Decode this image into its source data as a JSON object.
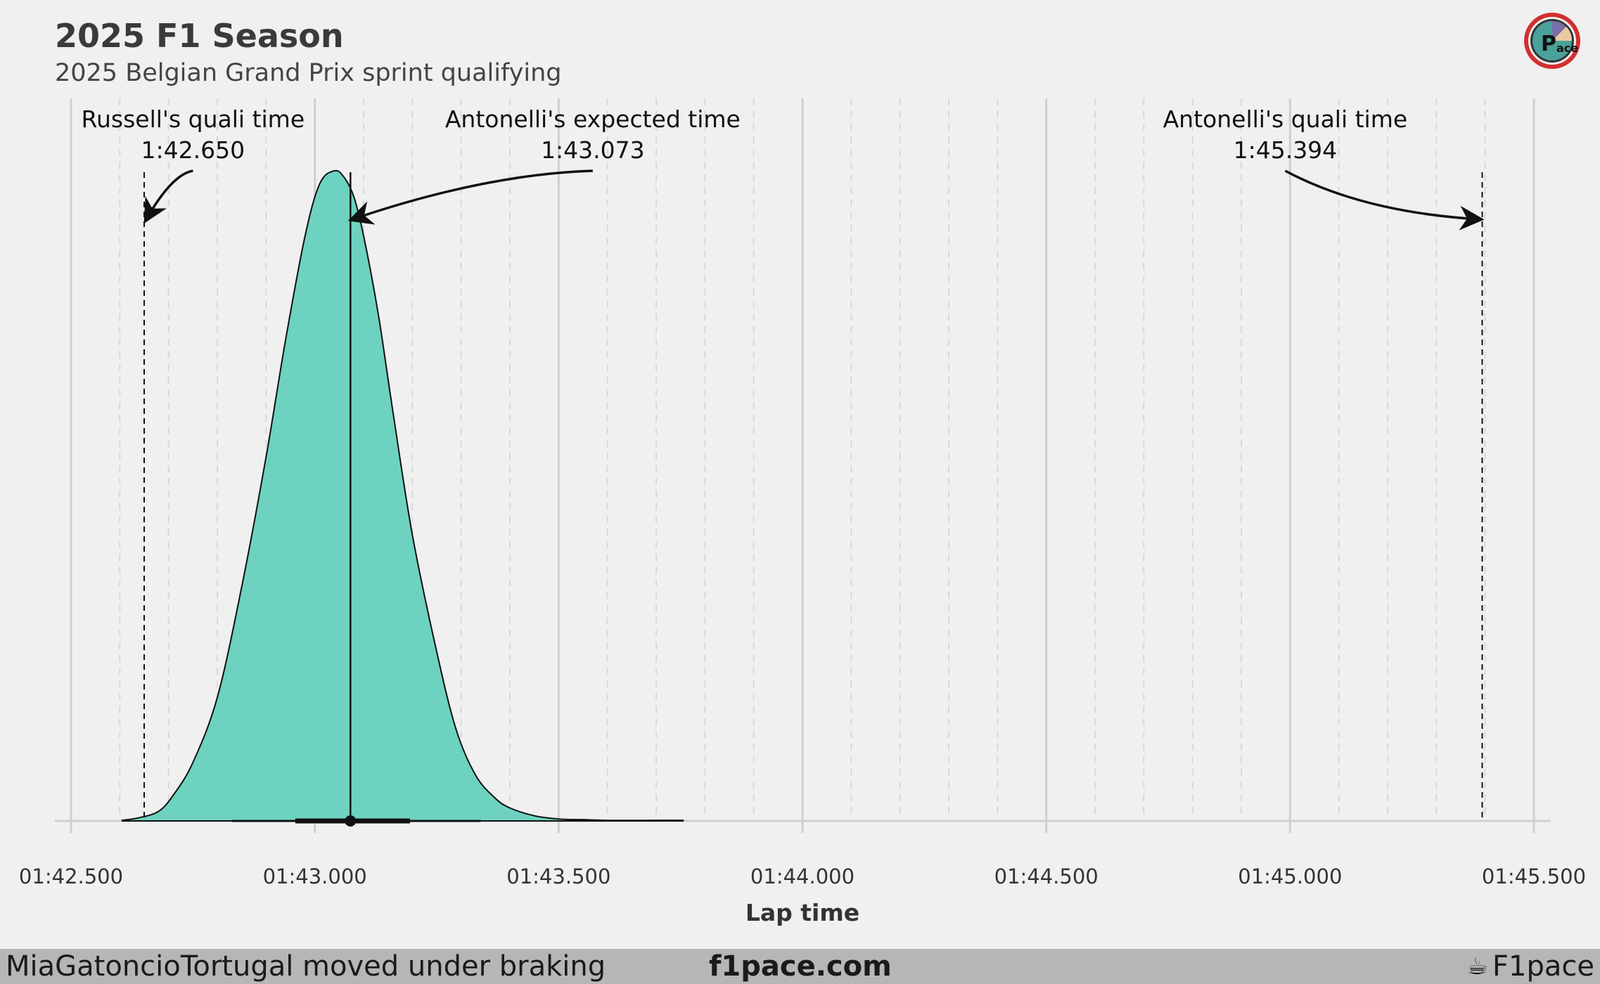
{
  "header": {
    "title": "2025 F1 Season",
    "subtitle": "2025 Belgian Grand Prix sprint qualifying"
  },
  "logo": {
    "icon": "f1pace-logo-icon",
    "ring_color": "#d32f2f",
    "inner_color": "#4aa29a",
    "text": "ace"
  },
  "chart_data": {
    "type": "area",
    "subtype": "density",
    "xlabel": "Lap time",
    "ylabel": "",
    "xlim": [
      102.45,
      105.53
    ],
    "ticks": [
      {
        "value": 102.5,
        "label": "01:42.500"
      },
      {
        "value": 103.0,
        "label": "01:43.000"
      },
      {
        "value": 103.5,
        "label": "01:43.500"
      },
      {
        "value": 104.0,
        "label": "01:44.000"
      },
      {
        "value": 104.5,
        "label": "01:44.500"
      },
      {
        "value": 105.0,
        "label": "01:45.000"
      },
      {
        "value": 105.5,
        "label": "01:45.500"
      }
    ],
    "minor_tick_step": 0.1,
    "grid": true,
    "fill_color": "#6dd3c0",
    "series": [
      {
        "x": [
          102.605,
          102.64,
          102.68,
          102.71,
          102.75,
          102.8,
          102.85,
          102.9,
          102.94,
          102.98,
          103.01,
          103.04,
          103.06,
          103.08,
          103.1,
          103.13,
          103.16,
          103.2,
          103.25,
          103.29,
          103.33,
          103.37,
          103.4,
          103.45,
          103.5,
          103.55,
          103.6,
          103.65,
          103.7,
          103.755
        ],
        "y": [
          0.001,
          0.005,
          0.015,
          0.04,
          0.09,
          0.19,
          0.36,
          0.56,
          0.74,
          0.9,
          0.98,
          1.0,
          0.99,
          0.96,
          0.9,
          0.78,
          0.63,
          0.44,
          0.26,
          0.14,
          0.07,
          0.035,
          0.02,
          0.008,
          0.003,
          0.002,
          0.001,
          0.0008,
          0.001,
          0.001
        ]
      }
    ],
    "boxplot": {
      "whisker_low": 102.83,
      "q1": 102.96,
      "median": 103.073,
      "q3": 103.195,
      "whisker_high": 103.34
    },
    "markers": [
      {
        "value": 102.65,
        "style": "dashed",
        "label_line1": "Russell's quali time",
        "label_line2": "1:42.650",
        "label_x": 102.75
      },
      {
        "value": 103.073,
        "style": "solid",
        "label_line1": "Antonelli's expected time",
        "label_line2": "1:43.073",
        "label_x": 103.57
      },
      {
        "value": 105.394,
        "style": "dashed",
        "label_line1": "Antonelli's quali time",
        "label_line2": "1:45.394",
        "label_x": 104.99
      }
    ]
  },
  "footer": {
    "handle": "MiaGatoncioTortugal moved under braking",
    "site": "f1pace.com",
    "brand": "F1pace",
    "brand_icon": "cup-icon"
  }
}
